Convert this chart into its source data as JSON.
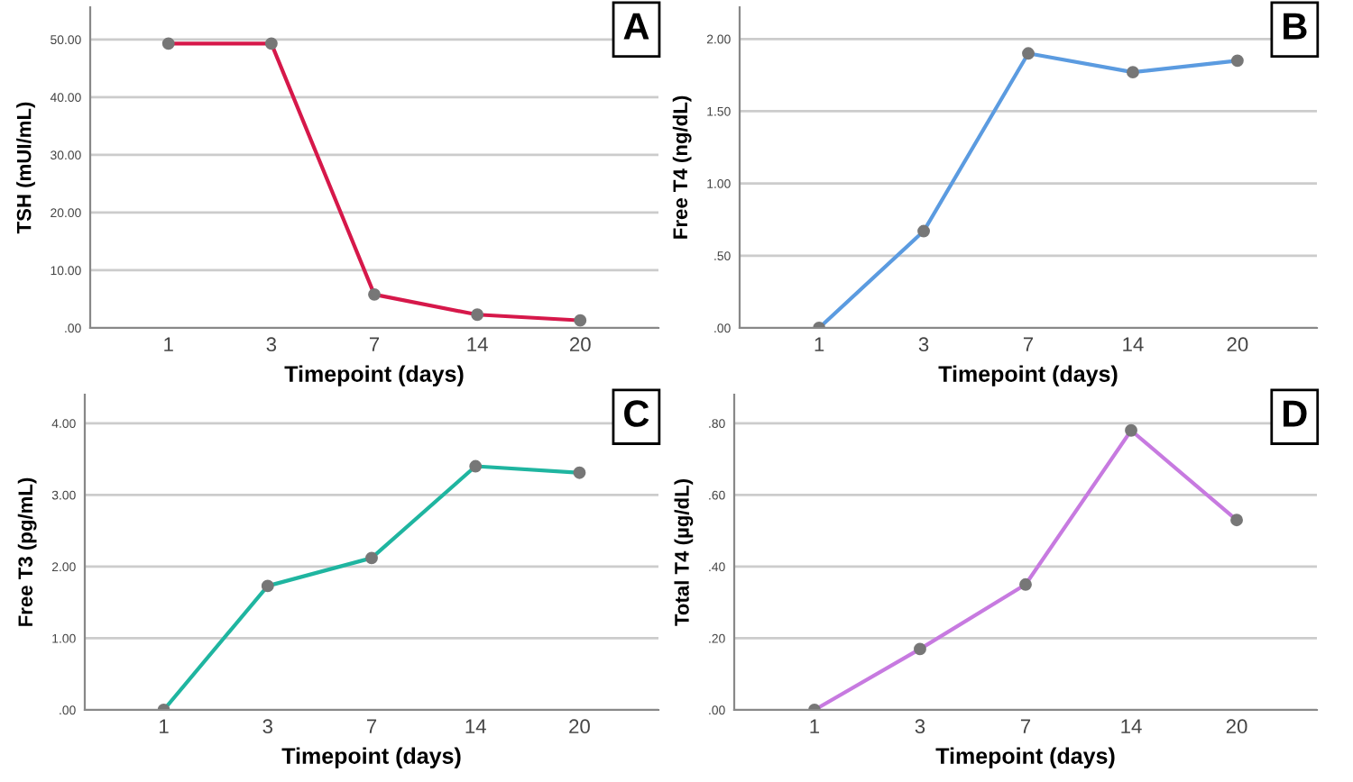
{
  "chart_data": [
    {
      "type": "line",
      "xlabel": "Timepoint (days)",
      "ylabel": "TSH (mUI/mL)",
      "annotations": [
        "A"
      ],
      "categories": [
        "1",
        "3",
        "7",
        "14",
        "20"
      ],
      "series": [
        {
          "color": "#d6184a",
          "values": [
            49.3,
            49.3,
            5.8,
            2.3,
            1.3
          ]
        }
      ],
      "ylim": [
        0,
        55.6
      ],
      "yticks": [
        {
          "value": 0,
          "label": ".00"
        },
        {
          "value": 10,
          "label": "10.00"
        },
        {
          "value": 20,
          "label": "20.00"
        },
        {
          "value": 30,
          "label": "30.00"
        },
        {
          "value": 40,
          "label": "40.00"
        },
        {
          "value": 50,
          "label": "50.00"
        }
      ],
      "grid": "y",
      "marker": "circle",
      "line_style": "solid",
      "legend": false
    },
    {
      "type": "line",
      "xlabel": "Timepoint (days)",
      "ylabel": "Free T4 (ng/dL)",
      "annotations": [
        "B"
      ],
      "categories": [
        "1",
        "3",
        "7",
        "14",
        "20"
      ],
      "series": [
        {
          "color": "#5b9be0",
          "values": [
            0.0,
            0.67,
            1.9,
            1.77,
            1.85
          ]
        }
      ],
      "ylim": [
        0,
        2.22
      ],
      "yticks": [
        {
          "value": 0,
          "label": ".00"
        },
        {
          "value": 0.5,
          "label": ".50"
        },
        {
          "value": 1,
          "label": "1.00"
        },
        {
          "value": 1.5,
          "label": "1.50"
        },
        {
          "value": 2,
          "label": "2.00"
        }
      ],
      "grid": "y",
      "marker": "circle",
      "line_style": "solid",
      "legend": false
    },
    {
      "type": "line",
      "xlabel": "Timepoint (days)",
      "ylabel": "Free T3 (pg/mL)",
      "annotations": [
        "C"
      ],
      "categories": [
        "1",
        "3",
        "7",
        "14",
        "20"
      ],
      "series": [
        {
          "color": "#1fb5a0",
          "values": [
            0.0,
            1.73,
            2.12,
            3.4,
            3.31
          ]
        }
      ],
      "ylim": [
        0,
        4.4
      ],
      "yticks": [
        {
          "value": 0,
          "label": ".00"
        },
        {
          "value": 1,
          "label": "1.00"
        },
        {
          "value": 2,
          "label": "2.00"
        },
        {
          "value": 3,
          "label": "3.00"
        },
        {
          "value": 4,
          "label": "4.00"
        }
      ],
      "grid": "y",
      "marker": "circle",
      "line_style": "solid",
      "legend": false
    },
    {
      "type": "line",
      "xlabel": "Timepoint (days)",
      "ylabel": "Total T4 (µg/dL)",
      "annotations": [
        "D"
      ],
      "categories": [
        "1",
        "3",
        "7",
        "14",
        "20"
      ],
      "series": [
        {
          "color": "#c77ae0",
          "values": [
            0.0,
            0.17,
            0.35,
            0.78,
            0.53
          ]
        }
      ],
      "ylim": [
        0,
        0.88
      ],
      "yticks": [
        {
          "value": 0,
          "label": ".00"
        },
        {
          "value": 0.2,
          "label": ".20"
        },
        {
          "value": 0.4,
          "label": ".40"
        },
        {
          "value": 0.6,
          "label": ".60"
        },
        {
          "value": 0.8,
          "label": ".80"
        }
      ],
      "grid": "y",
      "marker": "circle",
      "line_style": "solid",
      "legend": false
    }
  ]
}
